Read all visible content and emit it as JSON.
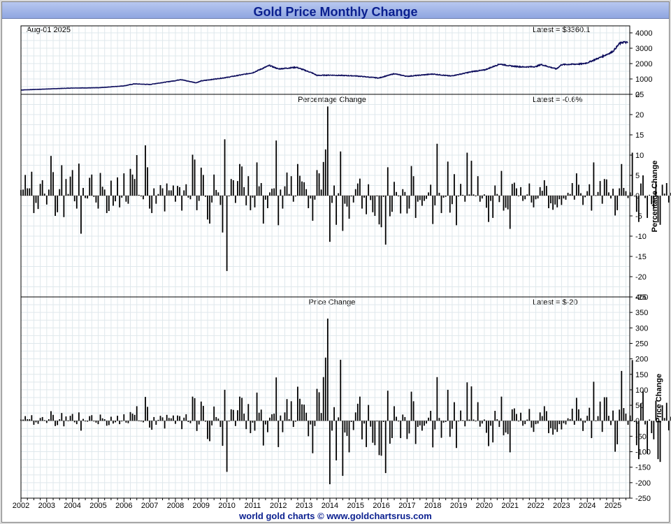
{
  "title": "Gold Price Monthly Change",
  "footer": "world gold charts © www.goldchartsrus.com",
  "colors": {
    "line": "#0a0a5a",
    "bar": "#000000",
    "grid": "#dfe8ec",
    "title": "#0a1f8f"
  },
  "chart_data": [
    {
      "type": "line",
      "title": "",
      "date_label": "Aug-01  2025",
      "latest_label": "Latest = $3360.1",
      "ylim": [
        0,
        4000
      ],
      "yticks": [
        0,
        1000,
        2000,
        3000,
        4000
      ],
      "x_years": [
        "2002",
        "2003",
        "2004",
        "2005",
        "2006",
        "2007",
        "2008",
        "2009",
        "2010",
        "2011",
        "2012",
        "2013",
        "2014",
        "2015",
        "2016",
        "2017",
        "2018",
        "2019",
        "2020",
        "2021",
        "2022",
        "2023",
        "2024",
        "2025"
      ],
      "anchors": [
        [
          2002.0,
          280
        ],
        [
          2003.0,
          345
        ],
        [
          2004.0,
          410
        ],
        [
          2005.0,
          425
        ],
        [
          2006.0,
          550
        ],
        [
          2006.4,
          680
        ],
        [
          2007.0,
          640
        ],
        [
          2008.0,
          890
        ],
        [
          2008.2,
          960
        ],
        [
          2008.8,
          750
        ],
        [
          2009.0,
          870
        ],
        [
          2010.0,
          1100
        ],
        [
          2011.0,
          1400
        ],
        [
          2011.65,
          1880
        ],
        [
          2012.0,
          1650
        ],
        [
          2012.7,
          1760
        ],
        [
          2013.3,
          1400
        ],
        [
          2013.5,
          1230
        ],
        [
          2014.0,
          1250
        ],
        [
          2015.0,
          1200
        ],
        [
          2015.9,
          1060
        ],
        [
          2016.5,
          1340
        ],
        [
          2017.0,
          1170
        ],
        [
          2018.0,
          1320
        ],
        [
          2018.7,
          1190
        ],
        [
          2019.0,
          1290
        ],
        [
          2019.6,
          1500
        ],
        [
          2020.0,
          1580
        ],
        [
          2020.6,
          1970
        ],
        [
          2021.0,
          1850
        ],
        [
          2021.5,
          1780
        ],
        [
          2022.0,
          1800
        ],
        [
          2022.2,
          1940
        ],
        [
          2022.8,
          1650
        ],
        [
          2023.0,
          1930
        ],
        [
          2023.8,
          1980
        ],
        [
          2024.0,
          2050
        ],
        [
          2024.5,
          2400
        ],
        [
          2024.9,
          2700
        ],
        [
          2025.0,
          2800
        ],
        [
          2025.25,
          3300
        ],
        [
          2025.4,
          3400
        ],
        [
          2025.58,
          3360
        ]
      ]
    },
    {
      "type": "bar",
      "title": "Percentage Change",
      "latest_label": "Latest = -0.6%",
      "ylabel": "Percentage Change",
      "ylim": [
        -25,
        25
      ],
      "yticks": [
        -25,
        -20,
        -15,
        -10,
        -5,
        0,
        5,
        10,
        15,
        20,
        25
      ],
      "start": 2002.0,
      "step": 0.08333,
      "values": [
        1.4,
        1.5,
        5.1,
        1.8,
        1.8,
        5.9,
        -4.3,
        -1.8,
        -3.3,
        2.9,
        3.8,
        0.5,
        -2.2,
        1.5,
        9.8,
        5.8,
        -5.0,
        -4.1,
        1.6,
        7.5,
        -5.3,
        4.1,
        0.4,
        4.7,
        6.3,
        -1.4,
        -3.2,
        7.9,
        -9.4,
        1.9,
        -0.6,
        -0.7,
        4.4,
        5.2,
        -0.3,
        -1.7,
        -3.2,
        5.6,
        2.2,
        1.5,
        -4.3,
        -3.8,
        3.7,
        -2.5,
        -1.4,
        4.5,
        -2.9,
        -0.5,
        5.5,
        -1.5,
        -2.0,
        6.6,
        5.2,
        4.1,
        10.0,
        0.2,
        -0.2,
        -0.9,
        12.4,
        7.0,
        -3.2,
        -4.3,
        1.8,
        -2.0,
        0.4,
        2.6,
        1.8,
        -3.9,
        3.0,
        1.3,
        1.3,
        2.5,
        -1.5,
        2.4,
        2.1,
        -3.7,
        1.3,
        2.8,
        -0.5,
        -0.9,
        10.1,
        8.9,
        -3.6,
        -1.3,
        6.9,
        5.1,
        -0.3,
        -5.9,
        -6.9,
        -1.7,
        5.2,
        1.4,
        0.8,
        -2.3,
        -9.1,
        13.9,
        -18.6,
        -0.1,
        4.1,
        3.8,
        -1.8,
        3.6,
        7.8,
        7.2,
        2.1,
        -2.4,
        4.8,
        -3.6,
        -0.5,
        -2.9,
        8.2,
        2.3,
        3.1,
        -6.9,
        -1.0,
        -3.1,
        0.8,
        1.7,
        1.8,
        13.6,
        -7.3,
        1.5,
        -3.2,
        2.3,
        5.7,
        0.4,
        4.8,
        -1.5,
        -0.2,
        7.8,
        4.9,
        3.5,
        3.3,
        1.6,
        -3.1,
        -0.7,
        -6.2,
        -1.0,
        6.3,
        5.5,
        1.5,
        8.3,
        11.4,
        22.0,
        -11.4,
        -1.8,
        2.5,
        -7.2,
        0.6,
        10.9,
        -8.7,
        -2.0,
        -2.7,
        -5.7,
        -0.2,
        -1.7,
        1.6,
        3.0,
        4.2,
        -3.2,
        -0.5,
        -4.6,
        2.8,
        -1.1,
        -4.1,
        -5.0,
        0.0,
        -7.1,
        -7.8,
        -0.3,
        -12.1,
        7.0,
        -5.1,
        -4.0,
        3.4,
        0.9,
        -0.1,
        -4.4,
        1.6,
        0.9,
        -4.4,
        -3.2,
        7.3,
        4.8,
        -5.5,
        -1.5,
        -1.1,
        -2.5,
        -1.3,
        -0.8,
        0.8,
        2.7,
        -7.0,
        -2.4,
        12.8,
        0.7,
        -4.3,
        -0.5,
        -0.3,
        8.4,
        -4.2,
        -2.1,
        5.3,
        -7.3,
        -0.2,
        2.9,
        0.2,
        -1.5,
        10.6,
        0.3,
        8.6,
        0.3,
        -0.1,
        4.8,
        -1.5,
        -0.7,
        0.3,
        -3.0,
        -6.5,
        -1.3,
        -5.5,
        2.5,
        0.4,
        -1.6,
        6.1,
        -3.7,
        -3.0,
        -3.4,
        -8.2,
        2.9,
        3.2,
        1.8,
        0.0,
        2.1,
        -1.3,
        -0.9,
        0.3,
        3.0,
        -1.7,
        -2.9,
        -0.9,
        -0.7,
        2.1,
        1.2,
        3.8,
        2.4,
        -3.1,
        -1.9,
        -3.5,
        -2.2,
        -2.9,
        -0.9,
        -2.3,
        -0.7,
        -1.0,
        0.7,
        0.4,
        3.1,
        -1.0,
        5.5,
        2.7,
        0.6,
        -2.3,
        -0.4,
        1.1,
        2.8,
        -3.7,
        8.2,
        0.1,
        0.9,
        3.6,
        -2.0,
        4.1,
        4.0,
        0.8,
        -0.7,
        1.7,
        -4.9,
        -3.6,
        1.8,
        7.8,
        1.9,
        1.1,
        -0.6,
        0.8,
        10.6,
        -0.2,
        -4.0,
        -6.5,
        3.0,
        5.0,
        -0.6,
        -5.5,
        0.2,
        -2.1,
        -3.2,
        3.5,
        -6.6,
        -7.2,
        2.7,
        0.5,
        3.1,
        -1.7,
        0.7,
        5.8,
        -1.7,
        -1.4,
        -0.6,
        -1.6,
        -1.8,
        -5.5,
        -2.0,
        -3.1,
        -1.8,
        2.2,
        -1.4,
        -3.1,
        -5.2,
        8.1,
        -3.2,
        -1.7,
        -5.4,
        2.3,
        -1.8,
        6.1,
        5.8,
        -2.0,
        3.7,
        -0.6,
        -1.1,
        6.8,
        -1.6,
        -0.1,
        2.4,
        1.8,
        -1.1,
        -3.4,
        -5.3,
        -0.8,
        -3.3,
        2.6,
        2.7,
        7.8,
        5.0,
        4.2,
        0.0,
        4.6,
        -2.1,
        -0.6,
        0.7,
        1.3,
        -1.3,
        5.7,
        7.1,
        0.1,
        5.5,
        -2.6,
        -1.3,
        1.1,
        7.4,
        0.5,
        -5.3,
        -6.5,
        -3.0,
        4.0,
        1.0,
        8.3,
        -0.6,
        -1.8,
        8.2,
        -3.8,
        -2.6,
        -0.8,
        -1.5,
        2.8,
        -0.6,
        -2.4,
        3.8,
        -1.0,
        -2.2,
        -1.3,
        7.4,
        0.3,
        6.0,
        5.1,
        2.2,
        9.4,
        -3.0,
        -0.4,
        -2.4,
        -1.7,
        -0.8,
        -1.2,
        3.2,
        -2.2,
        -3.7,
        0.1,
        6.5,
        9.6,
        6.2,
        1.2,
        -0.6,
        0.4,
        -0.6
      ]
    },
    {
      "type": "bar",
      "title": "Price Change",
      "latest_label": "Latest = $-20",
      "ylabel": "Price Change",
      "ylim": [
        -250,
        400
      ],
      "yticks": [
        -250,
        -200,
        -150,
        -100,
        -50,
        0,
        50,
        100,
        150,
        200,
        250,
        300,
        350,
        400
      ],
      "start": 2002.0,
      "step": 0.08333,
      "values": [
        4,
        4,
        15,
        5,
        5,
        18,
        -13,
        -5,
        -10,
        9,
        12,
        2,
        -7,
        5,
        31,
        19,
        -17,
        -14,
        5,
        25,
        -18,
        14,
        1,
        16,
        22,
        -5,
        -11,
        27,
        -32,
        6,
        -2,
        -3,
        15,
        18,
        -1,
        -6,
        -11,
        20,
        8,
        5,
        -16,
        -14,
        13,
        -9,
        -5,
        16,
        -11,
        -2,
        21,
        -6,
        -8,
        28,
        23,
        19,
        47,
        1,
        -1,
        -5,
        77,
        45,
        -22,
        -29,
        12,
        -13,
        3,
        16,
        11,
        -25,
        19,
        9,
        8,
        17,
        -10,
        17,
        15,
        -27,
        10,
        21,
        -4,
        -8,
        78,
        73,
        -33,
        -12,
        62,
        48,
        -3,
        -59,
        -66,
        -15,
        46,
        12,
        7,
        -20,
        -81,
        100,
        -165,
        -1,
        37,
        35,
        -17,
        34,
        78,
        74,
        23,
        -27,
        54,
        -40,
        -6,
        -32,
        91,
        26,
        36,
        -80,
        -12,
        -37,
        10,
        21,
        23,
        140,
        -85,
        17,
        -37,
        27,
        70,
        5,
        63,
        -20,
        -3,
        110,
        71,
        53,
        52,
        26,
        -50,
        -12,
        -105,
        -17,
        103,
        92,
        25,
        141,
        204,
        330,
        -205,
        -32,
        44,
        -128,
        11,
        197,
        -178,
        -38,
        -49,
        -102,
        -4,
        -30,
        27,
        55,
        78,
        -60,
        -9,
        -85,
        51,
        -19,
        -71,
        -79,
        0,
        -111,
        -113,
        -4,
        -169,
        97,
        -74,
        -56,
        47,
        13,
        -1,
        -56,
        20,
        12,
        -59,
        -41,
        94,
        63,
        -75,
        -20,
        -15,
        -32,
        -16,
        -9,
        10,
        32,
        -86,
        -28,
        141,
        9,
        -55,
        -6,
        -4,
        100,
        -52,
        -26,
        60,
        -88,
        -2,
        33,
        2,
        -18,
        124,
        4,
        111,
        4,
        -1,
        60,
        -19,
        -9,
        4,
        -39,
        -82,
        -16,
        -70,
        32,
        5,
        -20,
        78,
        -47,
        -38,
        -43,
        -102,
        37,
        40,
        22,
        0,
        26,
        -16,
        -11,
        4,
        38,
        -22,
        -36,
        -11,
        -9,
        27,
        15,
        47,
        31,
        -40,
        -24,
        -45,
        -28,
        -36,
        -11,
        -28,
        -8,
        -12,
        8,
        5,
        39,
        -13,
        74,
        37,
        8,
        -33,
        -6,
        16,
        42,
        -56,
        126,
        1,
        15,
        62,
        -36,
        76,
        76,
        16,
        -14,
        33,
        -100,
        -76,
        36,
        161,
        41,
        23,
        -13,
        17,
        196,
        -4,
        -79,
        -124,
        56,
        96,
        -12,
        -107,
        4,
        -40,
        -60,
        65,
        -124,
        -133,
        50,
        9,
        58,
        -31,
        13,
        109,
        -32,
        -26,
        -11,
        -30,
        -34,
        -100,
        -36,
        -56,
        -32,
        39,
        -25,
        -58,
        -95,
        138,
        -58,
        -30,
        -98,
        38,
        -31,
        106,
        104,
        -36,
        68,
        -11,
        -21,
        132,
        -32,
        -2,
        49,
        37,
        -22,
        -70,
        -110,
        -16,
        -68,
        55,
        57,
        170,
        113,
        95,
        0,
        108,
        -50,
        -15,
        16,
        31,
        -31,
        141,
        182,
        3,
        152,
        -75,
        -38,
        32,
        220,
        15,
        -160,
        -200,
        -94,
        126,
        32,
        264,
        -19,
        -58,
        270,
        -128,
        -89,
        -26,
        -48,
        89,
        -19,
        -76,
        120,
        -31,
        -68,
        -40,
        226,
        9,
        188,
        164,
        72,
        320,
        -103,
        -14,
        -84,
        -60,
        -27,
        -41,
        108,
        -74,
        -121,
        3,
        218,
        365,
        257,
        50,
        -20,
        18,
        -20
      ]
    }
  ]
}
